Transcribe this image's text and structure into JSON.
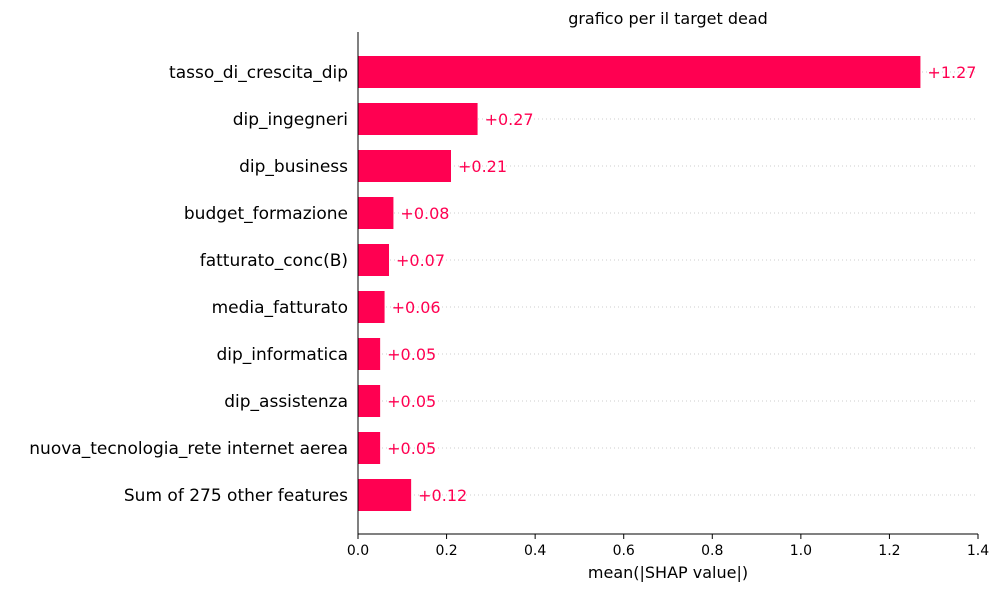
{
  "chart_data": {
    "type": "bar",
    "orientation": "horizontal",
    "title": "grafico per il target dead",
    "xlabel": "mean(|SHAP value|)",
    "ylabel": "",
    "categories": [
      "tasso_di_crescita_dip",
      "dip_ingegneri",
      "dip_business",
      "budget_formazione",
      "fatturato_conc(B)",
      "media_fatturato",
      "dip_informatica",
      "dip_assistenza",
      "nuova_tecnologia_rete internet aerea",
      "Sum of 275 other features"
    ],
    "values": [
      1.27,
      0.27,
      0.21,
      0.08,
      0.07,
      0.06,
      0.05,
      0.05,
      0.05,
      0.12
    ],
    "value_labels": [
      "+1.27",
      "+0.27",
      "+0.21",
      "+0.08",
      "+0.07",
      "+0.06",
      "+0.05",
      "+0.05",
      "+0.05",
      "+0.12"
    ],
    "xlim": [
      0,
      1.4
    ],
    "xticks": [
      "0.0",
      "0.2",
      "0.4",
      "0.6",
      "0.8",
      "1.0",
      "1.2",
      "1.4"
    ],
    "grid": "dotted horizontal per row",
    "colors": {
      "bar": "#ff0051",
      "label": "#ff0051",
      "axis": "#000000",
      "grid": "#cccccc"
    }
  }
}
